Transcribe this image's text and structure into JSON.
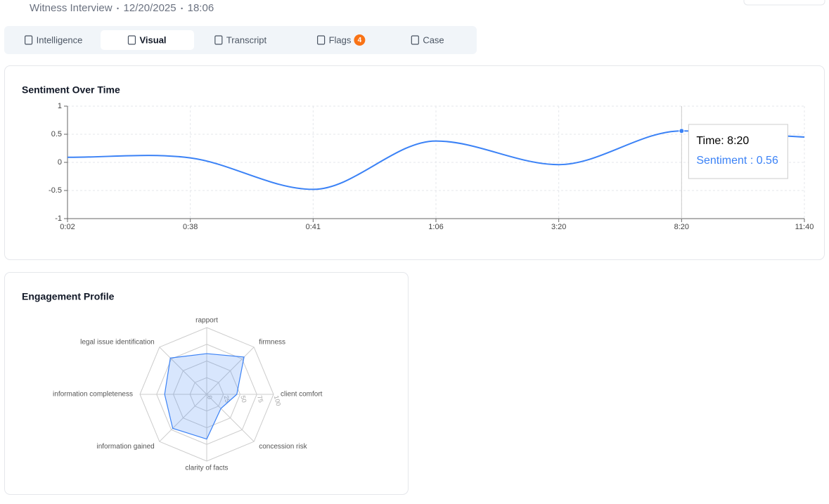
{
  "header": {
    "meta": [
      "Witness Interview",
      "12/20/2025",
      "18:06"
    ]
  },
  "tabs": [
    {
      "label": "Intelligence"
    },
    {
      "label": "Visual",
      "active": true
    },
    {
      "label": "Transcript"
    },
    {
      "label": "Flags",
      "badge": "4"
    },
    {
      "label": "Case"
    }
  ],
  "chart_data": [
    {
      "type": "line",
      "title": "Sentiment Over Time",
      "categories": [
        "0:02",
        "0:38",
        "0:41",
        "1:06",
        "3:20",
        "8:20",
        "11:40"
      ],
      "series": [
        {
          "name": "Sentiment",
          "color": "#3b82f6",
          "values": [
            0.09,
            0.08,
            -0.48,
            0.38,
            -0.04,
            0.56,
            0.45
          ]
        }
      ],
      "ylim": [
        -1,
        1
      ],
      "yticks": [
        -1,
        -0.5,
        0,
        0.5,
        1
      ],
      "grid": true,
      "tooltip": {
        "title": "Time: 8:20",
        "text": "Sentiment : 0.56"
      }
    },
    {
      "type": "radar",
      "title": "Engagement Profile",
      "categories": [
        "rapport",
        "firmness",
        "client comfort",
        "concession risk",
        "clarity of facts",
        "information gained",
        "information completeness",
        "legal issue identification"
      ],
      "series": [
        {
          "name": "Engagement",
          "color": "#3b82f6",
          "values": [
            61,
            79,
            45,
            30,
            67,
            72,
            63,
            77
          ]
        }
      ],
      "rlim": [
        0,
        100
      ],
      "rticks": [
        0,
        25,
        50,
        75,
        100
      ]
    }
  ]
}
